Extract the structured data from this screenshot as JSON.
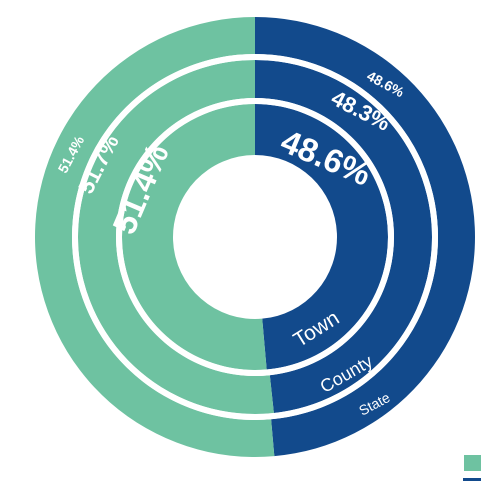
{
  "colors": {
    "green": "#6ec2a1",
    "blue": "#124a8c",
    "separator": "#ffffff",
    "background": "#ffffff"
  },
  "chart_data": {
    "type": "pie",
    "variant": "nested-donut",
    "rings": [
      {
        "name": "State",
        "values": [
          51.4,
          48.6
        ],
        "labels": [
          "51.4%",
          "48.6%"
        ],
        "label_weight": "light"
      },
      {
        "name": "County",
        "values": [
          51.7,
          48.3
        ],
        "labels": [
          "51.7%",
          "48.3%"
        ],
        "label_weight": "bold"
      },
      {
        "name": "Town",
        "values": [
          51.4,
          48.6
        ],
        "labels": [
          "51.4%",
          "48.6%"
        ],
        "label_weight": "bold"
      }
    ],
    "series_colors": [
      "#6ec2a1",
      "#124a8c"
    ],
    "legend": {
      "placement": "bottom-right",
      "entries": [
        {
          "color": "#6ec2a1",
          "text": ""
        },
        {
          "color": "#124a8c",
          "text": ""
        }
      ]
    }
  }
}
